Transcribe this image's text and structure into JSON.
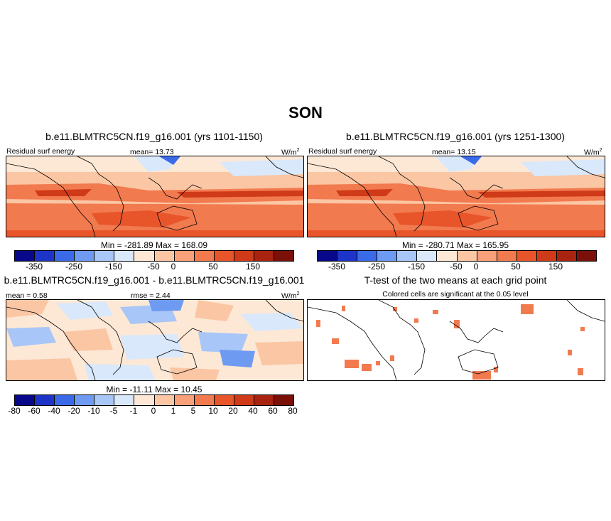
{
  "figure": {
    "title": "SON"
  },
  "panels": [
    {
      "title": "b.e11.BLMTRC5CN.f19_g16.001 (yrs 1101-1150)",
      "left_label": "Residual surf energy",
      "mean_label": "mean=  13.73",
      "units": "W/m",
      "units_sup": "2",
      "minmax": "Min = -281.89 Max = 168.09"
    },
    {
      "title": "b.e11.BLMTRC5CN.f19_g16.001 (yrs 1251-1300)",
      "left_label": "Residual surf energy",
      "mean_label": "mean=  13.15",
      "units": "W/m",
      "units_sup": "2",
      "minmax": "Min = -280.71 Max = 165.95"
    },
    {
      "title": "b.e11.BLMTRC5CN.f19_g16.001 - b.e11.BLMTRC5CN.f19_g16.001",
      "mean_label": "mean =  0.58",
      "rmse_label": "rmse =  2.44",
      "units": "W/m",
      "units_sup": "2",
      "minmax": "Min = -11.11 Max = 10.45"
    },
    {
      "title": "T-test of the two means at each grid point",
      "subtitle": "Colored cells are significant at the 0.05 level"
    }
  ],
  "colorbars": {
    "abs": {
      "colors": [
        "#08088a",
        "#1c34c8",
        "#3a6ae8",
        "#6f9af2",
        "#a8c6f7",
        "#d9e8fb",
        "#fde8d6",
        "#fbc6a4",
        "#f7a07a",
        "#f27a4f",
        "#e8552b",
        "#cf3a18",
        "#a82410",
        "#7a1008"
      ],
      "ticks": [
        "-350",
        "-250",
        "-150",
        "-50",
        "0",
        "50",
        "150"
      ]
    },
    "diff": {
      "colors": [
        "#08088a",
        "#1c34c8",
        "#3a6ae8",
        "#6f9af2",
        "#a8c6f7",
        "#d9e8fb",
        "#fde8d6",
        "#fbc6a4",
        "#f7a07a",
        "#f27a4f",
        "#e8552b",
        "#cf3a18",
        "#a82410",
        "#7a1008"
      ],
      "ticks": [
        "-80",
        "-60",
        "-40",
        "-20",
        "-10",
        "-5",
        "-1",
        "0",
        "1",
        "5",
        "10",
        "20",
        "40",
        "60",
        "80"
      ]
    }
  },
  "map_colors": {
    "land_warm": "#fbc6a4",
    "band_strong": "#e8552b",
    "band_mid": "#f27a4f",
    "cool_light": "#d9e8fb",
    "cool_mid": "#a8c6f7",
    "cool_strong": "#3a6ae8",
    "significant": "#f27a4f"
  }
}
